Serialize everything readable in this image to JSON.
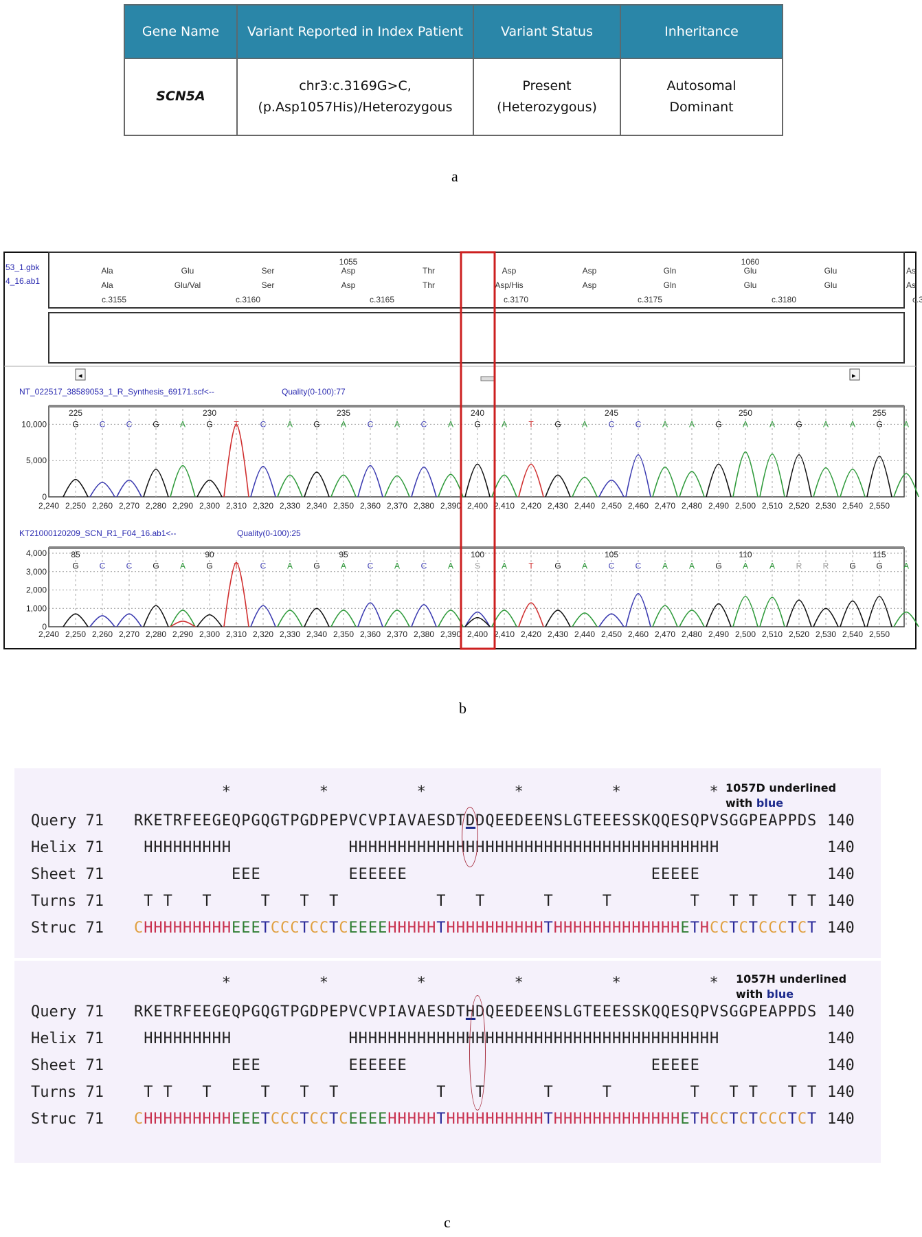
{
  "panel_a": {
    "label": "a",
    "headers": [
      "Gene Name",
      "Variant Reported in Index Patient",
      "Variant Status",
      "Inheritance"
    ],
    "row": {
      "gene": "SCN5A",
      "variant_line1": "chr3:c.3169G>C,",
      "variant_line2": "(p.Asp1057His)/Heterozygous",
      "status_line1": "Present",
      "status_line2": "(Heterozygous)",
      "inheritance_line1": "Autosomal",
      "inheritance_line2": "Dominant"
    },
    "header_color": "#2a86a8"
  },
  "panel_b": {
    "label": "b",
    "side_labels": [
      "53_1.gbk",
      "4_16.ab1"
    ],
    "codon_numbers": [
      {
        "after": 3,
        "text": "1055"
      },
      {
        "after": 8,
        "text": "1060"
      }
    ],
    "aa_reference": [
      "Ala",
      "Glu",
      "Ser",
      "Asp",
      "Thr",
      "Asp",
      "Asp",
      "Gln",
      "Glu",
      "Glu",
      "As"
    ],
    "aa_sample": [
      "Ala",
      "Glu/Val",
      "Ser",
      "Asp",
      "Thr",
      "Asp/His",
      "Asp",
      "Gln",
      "Glu",
      "Glu",
      "As"
    ],
    "cdna_labels": [
      "c.3155",
      "c.3160",
      "c.3165",
      "c.3170",
      "c.3175",
      "c.3180",
      "c.3"
    ],
    "highlight_color": "#cc1f1f",
    "base_colors": {
      "G": "#111111",
      "C": "#3a3ab0",
      "A": "#2e9a3a",
      "T": "#d03030",
      "S": "#999999",
      "R": "#999999"
    }
  },
  "chart_data": [
    {
      "type": "line",
      "title": "NT_022517_38589053_1_R_Synthesis_69171.scf<--",
      "quality": "Quality(0-100):77",
      "xlim": [
        2240,
        2557
      ],
      "ylim": [
        0,
        12500
      ],
      "x_ticks": [
        2240,
        2250,
        2260,
        2270,
        2280,
        2290,
        2300,
        2310,
        2320,
        2330,
        2340,
        2350,
        2360,
        2370,
        2380,
        2390,
        2400,
        2410,
        2420,
        2430,
        2440,
        2450,
        2460,
        2470,
        2480,
        2490,
        2500,
        2510,
        2520,
        2530,
        2540,
        2550
      ],
      "y_ticks": [
        0,
        5000,
        10000
      ],
      "y_tick_labels": [
        "0",
        "5,000",
        "10,000"
      ],
      "base_number_labels": [
        {
          "index": 0,
          "text": "225"
        },
        {
          "index": 5,
          "text": "230"
        },
        {
          "index": 10,
          "text": "235"
        },
        {
          "index": 15,
          "text": "240"
        },
        {
          "index": 20,
          "text": "245"
        },
        {
          "index": 25,
          "text": "250"
        },
        {
          "index": 30,
          "text": "255"
        }
      ],
      "base_calls": [
        "G",
        "C",
        "C",
        "G",
        "A",
        "G",
        "T",
        "C",
        "A",
        "G",
        "A",
        "C",
        "A",
        "C",
        "A",
        "G",
        "A",
        "T",
        "G",
        "A",
        "C",
        "C",
        "A",
        "A",
        "G",
        "A",
        "A",
        "G",
        "A",
        "A",
        "G",
        "A"
      ],
      "peak_heights": [
        2400,
        2000,
        2300,
        3800,
        4300,
        2300,
        10000,
        4200,
        3000,
        3400,
        3000,
        4300,
        2900,
        4100,
        3100,
        4500,
        3000,
        4500,
        3000,
        2700,
        2300,
        5800,
        4100,
        3500,
        4500,
        6200,
        5900,
        5800,
        4000,
        3800,
        5600,
        3200
      ],
      "peak_start": 2250,
      "peak_spacing": 10,
      "grid": true
    },
    {
      "type": "line",
      "title": "KT21000120209_SCN_R1_F04_16.ab1<--",
      "quality": "Quality(0-100):25",
      "xlim": [
        2240,
        2557
      ],
      "ylim": [
        0,
        4300
      ],
      "x_ticks": [
        2240,
        2250,
        2260,
        2270,
        2280,
        2290,
        2300,
        2310,
        2320,
        2330,
        2340,
        2350,
        2360,
        2370,
        2380,
        2390,
        2400,
        2410,
        2420,
        2430,
        2440,
        2450,
        2460,
        2470,
        2480,
        2490,
        2500,
        2510,
        2520,
        2530,
        2540,
        2550
      ],
      "y_ticks": [
        0,
        1000,
        2000,
        3000,
        4000
      ],
      "y_tick_labels": [
        "0",
        "1,000",
        "2,000",
        "3,000",
        "4,000"
      ],
      "base_number_labels": [
        {
          "index": 0,
          "text": "85"
        },
        {
          "index": 5,
          "text": "90"
        },
        {
          "index": 10,
          "text": "95"
        },
        {
          "index": 15,
          "text": "100"
        },
        {
          "index": 20,
          "text": "105"
        },
        {
          "index": 25,
          "text": "110"
        },
        {
          "index": 30,
          "text": "115"
        }
      ],
      "base_calls": [
        "G",
        "C",
        "C",
        "G",
        "A",
        "G",
        "T",
        "C",
        "A",
        "G",
        "A",
        "C",
        "A",
        "C",
        "A",
        "S",
        "A",
        "T",
        "G",
        "A",
        "C",
        "C",
        "A",
        "A",
        "G",
        "A",
        "A",
        "R",
        "R",
        "G",
        "G",
        "A"
      ],
      "peak_heights": [
        700,
        600,
        700,
        1150,
        900,
        650,
        3500,
        1150,
        900,
        1000,
        900,
        1300,
        900,
        1200,
        900,
        800,
        900,
        1300,
        900,
        750,
        700,
        1800,
        1150,
        900,
        1250,
        1650,
        1600,
        1450,
        1000,
        1400,
        1650,
        800
      ],
      "secondary_peaks": [
        {
          "index": 4,
          "base": "T",
          "height": 300
        },
        {
          "index": 15,
          "base": "G",
          "height": 500
        }
      ],
      "peak_start": 2250,
      "peak_spacing": 10,
      "grid": true
    }
  ],
  "panel_c": {
    "label": "c",
    "stars": "         *         *         *         *         *         *",
    "blocks": [
      {
        "note_line1": "1057D underlined",
        "note_with": "with ",
        "note_blue": "blue",
        "underline_index": 34,
        "rows": [
          {
            "name": "Query",
            "start": "71",
            "end": "140",
            "seq": "RKETRFEEGEQPGQGTPGDPEPVCVPIAVAESDTDDQEEDEENSLGTEEESSKQQESQPVSGGPEAPPDS"
          },
          {
            "name": "Helix",
            "start": "71",
            "end": "140",
            "seq": " HHHHHHHHH            HHHHHHHHHHHHHHHHHHHHHHHHHHHHHHHHHHHHHH          "
          },
          {
            "name": "Sheet",
            "start": "71",
            "end": "140",
            "seq": "          EEE         EEEEEE                         EEEEE            "
          },
          {
            "name": "Turns",
            "start": "71",
            "end": "140",
            "seq": " T T   T     T   T  T          T   T      T     T        T   T T   T T"
          },
          {
            "name": "Struc",
            "start": "71",
            "end": "140",
            "seq": "CHHHHHHHHHEEETCCCTCCTCEEEEHHHHHTHHHHHHHHHHTHHHHHHHHHHHHHETHCCTCTCCCTCT"
          }
        ]
      },
      {
        "note_line1": "1057H underlined",
        "note_with": "with ",
        "note_blue": "blue",
        "underline_index": 34,
        "rows": [
          {
            "name": "Query",
            "start": "71",
            "end": "140",
            "seq": "RKETRFEEGEQPGQGTPGDPEPVCVPIAVAESDTHDQEEDEENSLGTEEESSKQQESQPVSGGPEAPPDS"
          },
          {
            "name": "Helix",
            "start": "71",
            "end": "140",
            "seq": " HHHHHHHHH            HHHHHHHHHHHHHHHHHHHHHHHHHHHHHHHHHHHHHH          "
          },
          {
            "name": "Sheet",
            "start": "71",
            "end": "140",
            "seq": "          EEE         EEEEEE                         EEEEE            "
          },
          {
            "name": "Turns",
            "start": "71",
            "end": "140",
            "seq": " T T   T     T   T  T          T   T      T     T        T   T T   T T"
          },
          {
            "name": "Struc",
            "start": "71",
            "end": "140",
            "seq": "CHHHHHHHHHEEETCCCTCCTCEEEEHHHHHTHHHHHHHHHHTHHHHHHHHHHHHHETHCCTCTCCCTCT"
          }
        ]
      }
    ],
    "struc_colors": {
      "C": "#e0a040",
      "H": "#c8304e",
      "E": "#2e7d32",
      "T": "#2a2a9a"
    },
    "circle_color": "#a83040"
  }
}
